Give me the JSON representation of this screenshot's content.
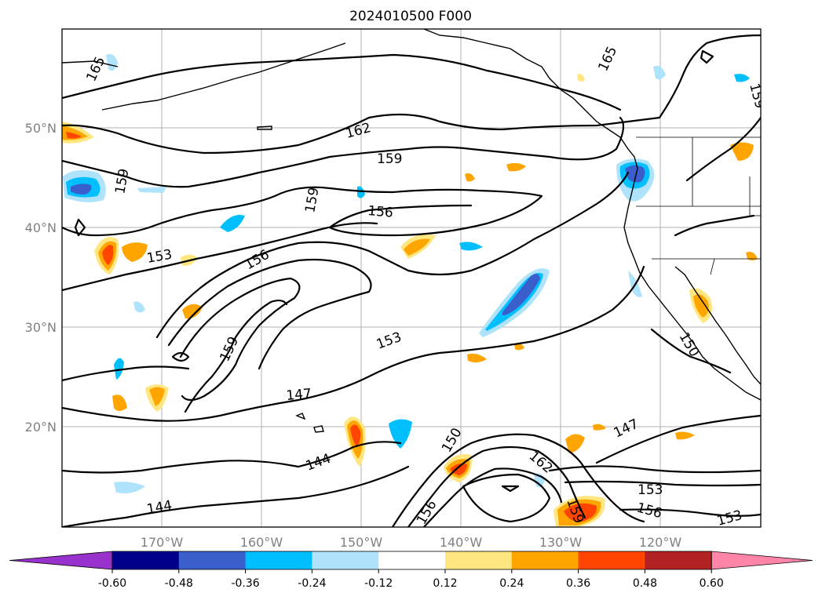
{
  "title": "2024010500 F000",
  "lat_labels": [
    "50°N",
    "40°N",
    "30°N",
    "20°N"
  ],
  "lon_labels": [
    "170°W",
    "160°W",
    "150°W",
    "140°W",
    "130°W",
    "120°W"
  ],
  "contour_labels": [
    "165",
    "165",
    "159",
    "162",
    "159",
    "159",
    "159",
    "156",
    "156",
    "153",
    "159",
    "153",
    "150",
    "147",
    "144",
    "144",
    "150",
    "162",
    "147",
    "153",
    "156",
    "156",
    "159",
    "153"
  ],
  "colorbar": {
    "ticks": [
      "-0.60",
      "-0.48",
      "-0.36",
      "-0.24",
      "-0.12",
      "0.12",
      "0.24",
      "0.36",
      "0.48",
      "0.60"
    ],
    "colors": [
      "#9932cc",
      "#00008b",
      "#3a5fcd",
      "#00bfff",
      "#aee3fb",
      "#ffffff",
      "#ffe680",
      "#ffa500",
      "#ff4500",
      "#b22222",
      "#ff85a8"
    ]
  }
}
